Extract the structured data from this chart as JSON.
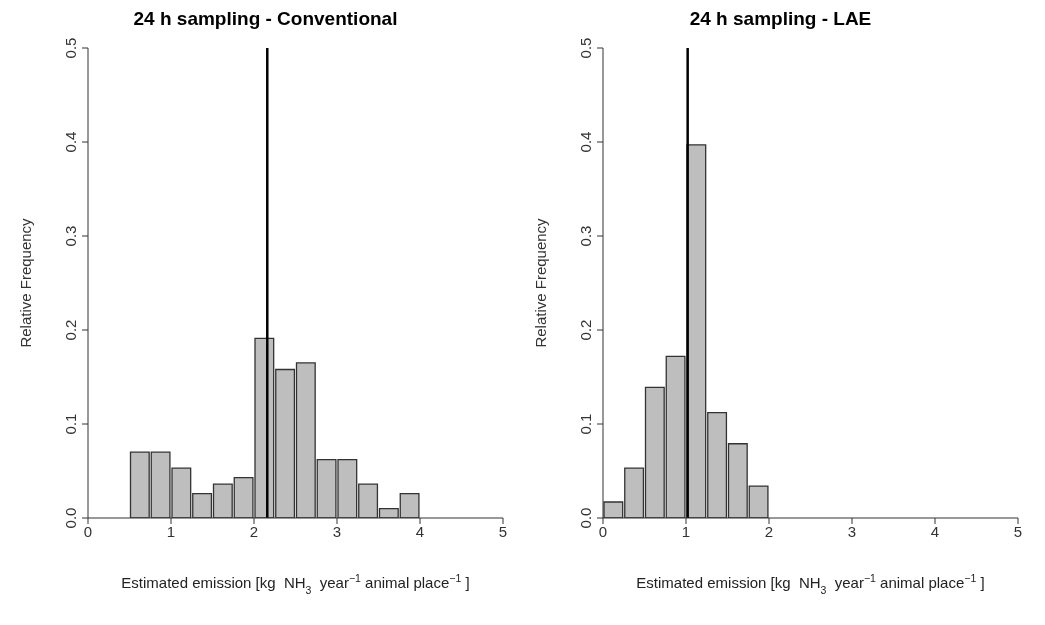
{
  "chart_data": [
    {
      "type": "histogram",
      "title": "24 h sampling - Conventional",
      "xlabel": "Estimated emission [kg  NH$_{3}$  year$^{−1}$ animal place$^{−1}$ ]",
      "ylabel": "Relative Frequency",
      "bins": [
        0,
        0.25,
        0.5,
        0.75,
        1,
        1.25,
        1.5,
        1.75,
        2,
        2.25,
        2.5,
        2.75,
        3,
        3.25,
        3.5,
        3.75,
        4,
        4.25,
        4.5,
        4.75,
        5
      ],
      "values": [
        0,
        0,
        0.07,
        0.07,
        0.053,
        0.026,
        0.036,
        0.043,
        0.191,
        0.158,
        0.165,
        0.062,
        0.062,
        0.036,
        0.01,
        0.026,
        0,
        0,
        0,
        0
      ],
      "color": "#bebebe",
      "xlim": [
        0,
        5
      ],
      "xticks": [
        0,
        1,
        2,
        3,
        4,
        5
      ],
      "ylim": [
        0,
        0.5
      ],
      "yticks": [
        {
          "value": 0,
          "label": "0.0"
        },
        0.1,
        0.2,
        0.3,
        0.4,
        0.5
      ],
      "grid": false,
      "legend": false,
      "ref_lines": [
        {
          "axis": "x",
          "value": 2.16,
          "color": "#000000"
        }
      ]
    },
    {
      "type": "histogram",
      "title": "24 h sampling - LAE",
      "xlabel": "Estimated emission [kg  NH$_{3}$  year$^{−1}$ animal place$^{−1}$ ]",
      "ylabel": "Relative Frequency",
      "bins": [
        0,
        0.25,
        0.5,
        0.75,
        1,
        1.25,
        1.5,
        1.75,
        2,
        2.25,
        2.5,
        2.75,
        3,
        3.25,
        3.5,
        3.75,
        4,
        4.25,
        4.5,
        4.75,
        5
      ],
      "values": [
        0.017,
        0.053,
        0.139,
        0.172,
        0.397,
        0.112,
        0.079,
        0.034,
        0,
        0,
        0,
        0,
        0,
        0,
        0,
        0,
        0,
        0,
        0,
        0
      ],
      "color": "#bebebe",
      "xlim": [
        0,
        5
      ],
      "xticks": [
        0,
        1,
        2,
        3,
        4,
        5
      ],
      "ylim": [
        0,
        0.5
      ],
      "yticks": [
        {
          "value": 0,
          "label": "0.0"
        },
        0.1,
        0.2,
        0.3,
        0.4,
        0.5
      ],
      "grid": false,
      "legend": false,
      "ref_lines": [
        {
          "axis": "x",
          "value": 1.02,
          "color": "#000000"
        }
      ]
    }
  ]
}
